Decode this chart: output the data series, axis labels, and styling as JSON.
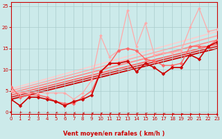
{
  "xlabel": "Vent moyen/en rafales ( km/h )",
  "bg_color": "#cceaea",
  "grid_color": "#aacccc",
  "axis_color": "#cc0000",
  "text_color": "#cc0000",
  "xlim": [
    0,
    23
  ],
  "ylim": [
    -0.5,
    26
  ],
  "xticks": [
    0,
    1,
    2,
    3,
    4,
    5,
    6,
    7,
    8,
    9,
    10,
    11,
    12,
    13,
    14,
    15,
    16,
    17,
    18,
    19,
    20,
    21,
    22,
    23
  ],
  "yticks": [
    0,
    5,
    10,
    15,
    20,
    25
  ],
  "series_data": [
    {
      "x": [
        0,
        1,
        2,
        3,
        4,
        5,
        6,
        7,
        8,
        9,
        10,
        11,
        12,
        13,
        14,
        15,
        16,
        17,
        18,
        19,
        20,
        21,
        22,
        23
      ],
      "y": [
        5.0,
        4.5,
        4.5,
        4.5,
        4.5,
        4.5,
        4.5,
        3.0,
        4.5,
        7.5,
        18.0,
        13.0,
        14.5,
        24.0,
        15.5,
        21.0,
        13.5,
        14.0,
        14.0,
        14.5,
        20.0,
        24.5,
        19.0,
        19.5
      ],
      "color": "#ffaaaa",
      "lw": 0.9,
      "marker": "D",
      "ms": 2.0,
      "zorder": 3
    },
    {
      "x": [
        0,
        1,
        2,
        3,
        4,
        5,
        6,
        7,
        8,
        9,
        10,
        11,
        12,
        13,
        14,
        15,
        16,
        17,
        18,
        19,
        20,
        21,
        22,
        23
      ],
      "y": [
        6.0,
        3.5,
        4.0,
        4.0,
        3.5,
        2.5,
        2.0,
        2.0,
        3.5,
        5.0,
        9.5,
        11.5,
        14.5,
        15.0,
        14.5,
        12.5,
        12.0,
        11.0,
        11.0,
        11.5,
        15.5,
        15.5,
        15.5,
        17.0
      ],
      "color": "#ff6666",
      "lw": 1.0,
      "marker": "D",
      "ms": 2.5,
      "zorder": 4
    },
    {
      "x": [
        0,
        1,
        2,
        3,
        4,
        5,
        6,
        7,
        8,
        9,
        10,
        11,
        12,
        13,
        14,
        15,
        16,
        17,
        18,
        19,
        20,
        21,
        22,
        23
      ],
      "y": [
        3.0,
        1.5,
        3.5,
        3.5,
        3.0,
        2.5,
        1.5,
        2.5,
        3.0,
        4.0,
        9.5,
        11.5,
        11.5,
        12.0,
        9.5,
        11.5,
        10.5,
        9.0,
        10.5,
        10.5,
        13.5,
        12.5,
        15.5,
        16.5
      ],
      "color": "#cc0000",
      "lw": 1.2,
      "marker": "D",
      "ms": 2.5,
      "zorder": 5
    }
  ],
  "trend_lines": [
    {
      "x0": 0,
      "y0": 5.5,
      "x1": 23,
      "y1": 19.0,
      "color": "#ffcccc",
      "lw": 1.2
    },
    {
      "x0": 0,
      "y0": 5.0,
      "x1": 23,
      "y1": 18.0,
      "color": "#ffaaaa",
      "lw": 1.2
    },
    {
      "x0": 0,
      "y0": 4.5,
      "x1": 23,
      "y1": 17.0,
      "color": "#ff8888",
      "lw": 1.2
    },
    {
      "x0": 0,
      "y0": 4.0,
      "x1": 23,
      "y1": 16.0,
      "color": "#ff6666",
      "lw": 1.2
    },
    {
      "x0": 0,
      "y0": 3.5,
      "x1": 23,
      "y1": 15.5,
      "color": "#dd2222",
      "lw": 1.2
    },
    {
      "x0": 0,
      "y0": 3.0,
      "x1": 23,
      "y1": 15.0,
      "color": "#cc0000",
      "lw": 1.3
    }
  ],
  "wind_arrow_angles": [
    180,
    200,
    210,
    210,
    215,
    220,
    230,
    245,
    260,
    270,
    280,
    285,
    285,
    290,
    295,
    300,
    310,
    315,
    320,
    330,
    335,
    340,
    350,
    355
  ],
  "wind_arrow_color": "#cc0000"
}
